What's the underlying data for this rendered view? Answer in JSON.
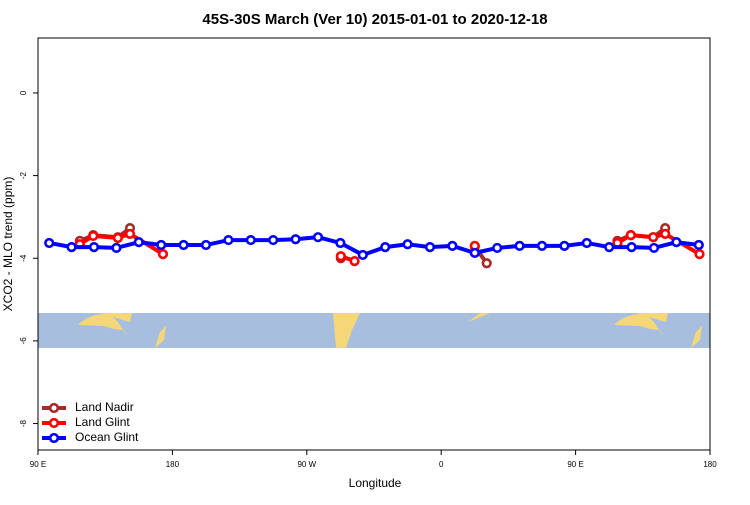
{
  "chart_data": {
    "type": "line",
    "title": "45S-30S March (Ver 10)   2015-01-01 to 2020-12-18",
    "x_label": "Longitude",
    "y_label": "XCO2 - MLO trend (ppm)",
    "xlim": [
      90,
      540
    ],
    "xticks": [
      {
        "value": 90,
        "label": "90 E"
      },
      180,
      {
        "value": 270,
        "label": "90 W"
      },
      {
        "value": 360,
        "label": "0"
      },
      {
        "value": 450,
        "label": "90 E"
      },
      {
        "value": 540,
        "label": "180"
      }
    ],
    "ylim": [
      -8.64,
      1.33
    ],
    "yticks": [
      0,
      -2,
      -4,
      -6,
      -8
    ],
    "legend": "bottom-left",
    "series": [
      {
        "name": "Land Nadir",
        "color": "#a52a2a",
        "x": [
          118,
          127,
          143.5,
          151.6,
          null,
          292.8,
          null,
          382.5,
          390.5,
          null,
          478,
          487,
          502,
          510
        ],
        "values": [
          -3.58,
          -3.44,
          -3.49,
          -3.27,
          null,
          -4.0,
          null,
          -3.72,
          -4.12,
          null,
          -3.58,
          -3.44,
          -3.49,
          -3.27
        ]
      },
      {
        "name": "Land Glint",
        "color": "#ff0000",
        "x": [
          118,
          127,
          143.5,
          151.6,
          173.7,
          null,
          292.8,
          302,
          null,
          382.5,
          null,
          478,
          487,
          502,
          510,
          533
        ],
        "values": [
          -3.66,
          -3.46,
          -3.51,
          -3.41,
          -3.9,
          null,
          -3.95,
          -4.07,
          null,
          -3.7,
          null,
          -3.63,
          -3.44,
          -3.49,
          -3.41,
          -3.9
        ]
      },
      {
        "name": "Ocean Glint",
        "color": "#0000ff",
        "x": [
          97.5,
          112.5,
          127.5,
          142.5,
          157.5,
          172.5,
          187.5,
          202.5,
          217.5,
          232.5,
          247.5,
          262.5,
          277.5,
          292.5,
          307.5,
          322.5,
          337.5,
          352.5,
          367.5,
          382.5,
          397.5,
          412.5,
          427.5,
          442.5,
          457.5,
          472.5,
          487.5,
          502.5,
          517.5,
          532.5
        ],
        "values": [
          -3.63,
          -3.73,
          -3.73,
          -3.75,
          -3.61,
          -3.68,
          -3.68,
          -3.68,
          -3.56,
          -3.56,
          -3.56,
          -3.54,
          -3.49,
          -3.63,
          -3.92,
          -3.73,
          -3.66,
          -3.73,
          -3.7,
          -3.87,
          -3.75,
          -3.7,
          -3.7,
          -3.7,
          -3.63,
          -3.73,
          -3.73,
          -3.75,
          -3.61,
          -3.68
        ]
      }
    ]
  }
}
